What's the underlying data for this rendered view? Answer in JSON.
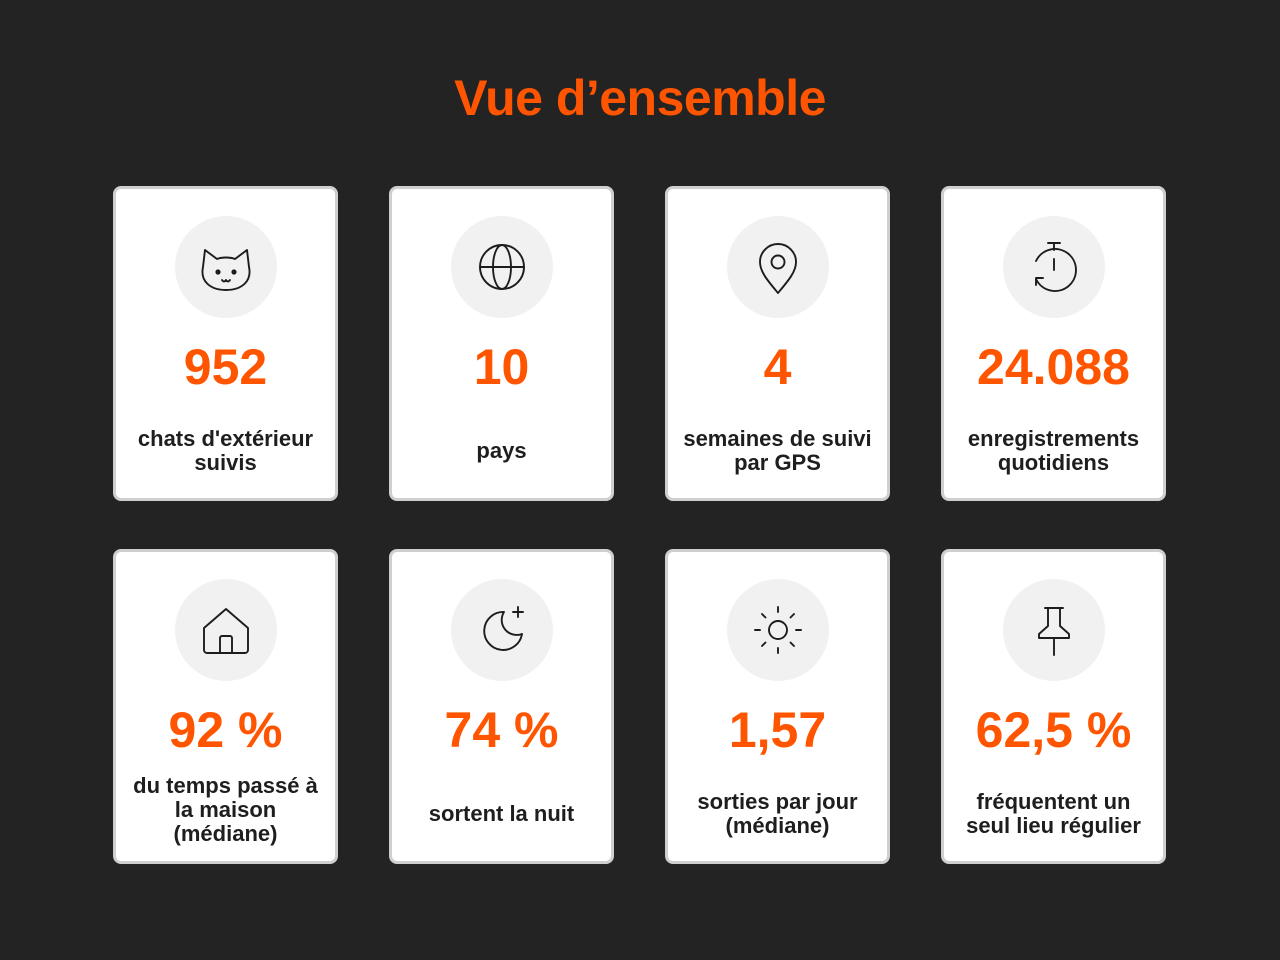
{
  "title": "Vue d’ensemble",
  "colors": {
    "accent": "#ff5500",
    "background": "#232323",
    "card": "#ffffff",
    "card_border": "#cfcfcf",
    "icon_circle": "#f1f1f1",
    "text": "#1e1e1e"
  },
  "cards": [
    {
      "icon": "cat-face-icon",
      "value": "952",
      "label": "chats d'extérieur suivis"
    },
    {
      "icon": "globe-icon",
      "value": "10",
      "label": "pays"
    },
    {
      "icon": "map-pin-icon",
      "value": "4",
      "label": "semaines de suivi par GPS"
    },
    {
      "icon": "stopwatch-history-icon",
      "value": "24.088",
      "label": "enregistrements quotidiens"
    },
    {
      "icon": "home-icon",
      "value": "92 %",
      "label": "du temps passé à la maison (médiane)"
    },
    {
      "icon": "moon-plus-icon",
      "value": "74 %",
      "label": "sortent la nuit"
    },
    {
      "icon": "sun-icon",
      "value": "1,57",
      "label": "sorties par jour (médiane)"
    },
    {
      "icon": "pushpin-icon",
      "value": "62,5 %",
      "label": "fréquentent un seul lieu régulier"
    }
  ]
}
